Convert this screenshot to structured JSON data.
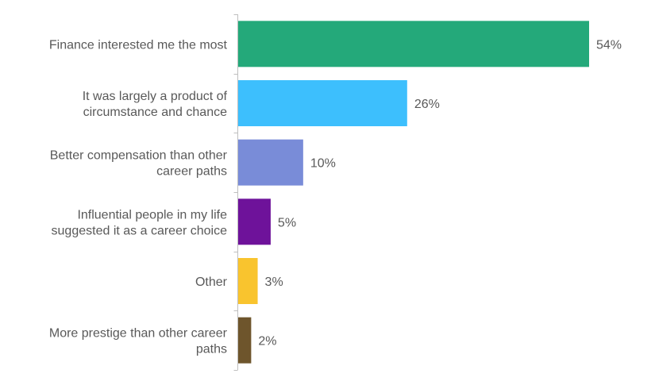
{
  "chart_data": {
    "type": "bar",
    "orientation": "horizontal",
    "categories": [
      "Finance interested me the most",
      "It was largely a product of circumstance and chance",
      "Better compensation than other career paths",
      "Influential people in my life suggested it as a career choice",
      "Other",
      "More prestige than other career paths"
    ],
    "values": [
      54,
      26,
      10,
      5,
      3,
      2
    ],
    "value_labels": [
      "54%",
      "26%",
      "10%",
      "5%",
      "3%",
      "2%"
    ],
    "category_label_lines": [
      [
        "Finance interested me the most"
      ],
      [
        "It was largely a product of",
        "circumstance and chance"
      ],
      [
        "Better compensation than other",
        "career paths"
      ],
      [
        "Influential people in my life",
        "suggested it as a career choice"
      ],
      [
        "Other"
      ],
      [
        "More prestige than other career",
        "paths"
      ]
    ],
    "colors": [
      "#24A97A",
      "#3DBFFD",
      "#798CD8",
      "#6E129A",
      "#F9C42E",
      "#6E552C"
    ],
    "xlim": [
      0,
      54
    ],
    "unit": "%",
    "title": "",
    "xlabel": "",
    "ylabel": "",
    "grid": false,
    "legend": "none",
    "axis_color": "#BFBFBF",
    "text_color": "#595959"
  }
}
